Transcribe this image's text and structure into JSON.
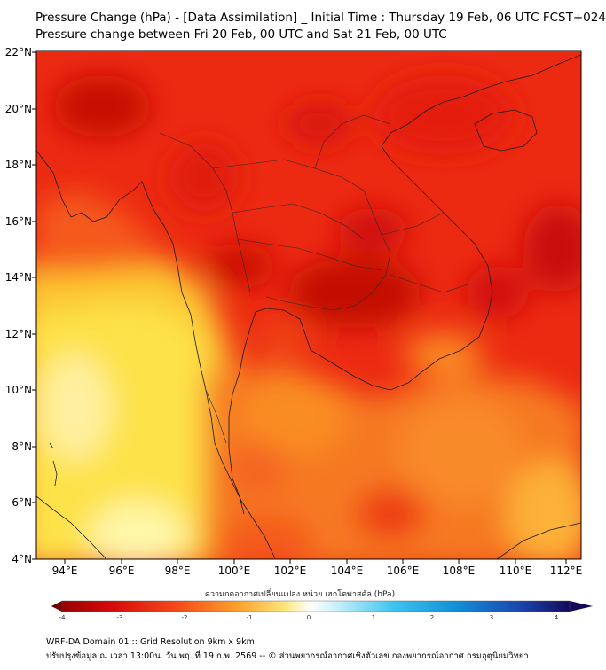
{
  "header": {
    "title_line1": "Pressure Change (hPa) - [Data Assimilation] _ Initial Time : Thursday 19 Feb, 06 UTC FCST+024",
    "title_line2": "Pressure change between Fri 20 Feb, 00 UTC and Sat 21 Feb, 00 UTC"
  },
  "map": {
    "lat_labels": [
      "22°N",
      "20°N",
      "18°N",
      "16°N",
      "14°N",
      "12°N",
      "10°N",
      "8°N",
      "6°N",
      "4°N"
    ],
    "lon_labels": [
      "94°E",
      "96°E",
      "98°E",
      "100°E",
      "102°E",
      "104°E",
      "106°E",
      "108°E",
      "110°E",
      "112°E"
    ]
  },
  "colorbar": {
    "title": "ความกดอากาศเปลี่ยนแปลง หน่วย เฮกโตพาสคัล (hPa)",
    "ticks": [
      "-4",
      "-3",
      "-2",
      "-1",
      "0",
      "1",
      "2",
      "3",
      "4"
    ],
    "range": [
      -4,
      4
    ]
  },
  "footer": {
    "line1": "WRF-DA Domain 01 :: Grid Resolution 9km x 9km",
    "line2": "ปรับปรุงข้อมูล ณ เวลา 13:00น. วัน พฤ. ที่ 19 ก.พ. 2569 -- © ส่วนพยากรณ์อากาศเชิงตัวเลข กองพยากรณ์อากาศ กรมอุตุนิยมวิทยา"
  },
  "colors": {
    "deep_red": "#c00000",
    "red": "#e8140c",
    "orange": "#f86a1c",
    "yellow": "#fcd93a",
    "light_yellow": "#fff5a0",
    "cyan": "#2ab8ee",
    "navy": "#1a0c6e"
  }
}
